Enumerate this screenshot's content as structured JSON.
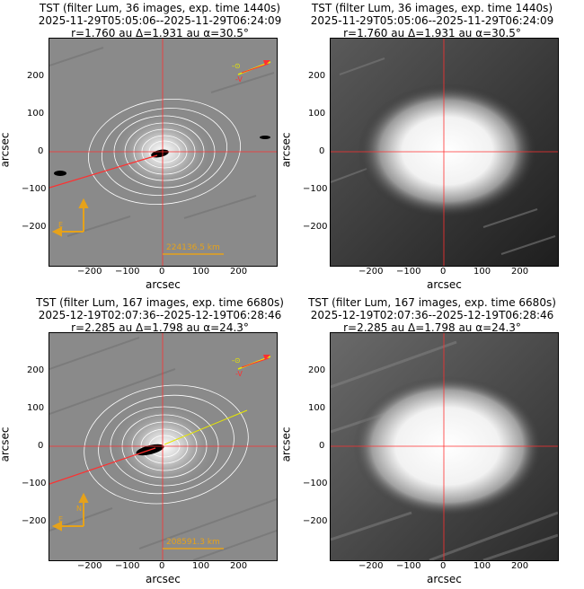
{
  "panels": [
    {
      "title_line1": "TST (filter Lum, 36 images, exp. time 1440s)",
      "title_line2": "2025-11-29T05:05:06--2025-11-29T06:24:09",
      "title_line3": "r=1.760 au Δ=1.931 au α=30.5°",
      "scalebar": "224136.5 km",
      "style": "processed"
    },
    {
      "title_line1": "TST (filter Lum, 36 images, exp. time 1440s)",
      "title_line2": "2025-11-29T05:05:06--2025-11-29T06:24:09",
      "title_line3": "r=1.760 au Δ=1.931 au α=30.5°",
      "style": "raw"
    },
    {
      "title_line1": "TST (filter Lum, 167 images, exp. time 6680s)",
      "title_line2": "2025-12-19T02:07:36--2025-12-19T06:28:46",
      "title_line3": "r=2.285 au Δ=1.798 au α=24.3°",
      "scalebar": "208591.3 km",
      "style": "processed"
    },
    {
      "title_line1": "TST (filter Lum, 167 images, exp. time 6680s)",
      "title_line2": "2025-12-19T02:07:36--2025-12-19T06:28:46",
      "title_line3": "r=2.285 au Δ=1.798 au α=24.3°",
      "style": "raw"
    }
  ],
  "axes": {
    "xlabel": "arcsec",
    "ylabel": "arcsec",
    "x_ticks": [
      "−200",
      "−100",
      "0",
      "100",
      "200"
    ],
    "y_ticks": [
      "200",
      "100",
      "0",
      "−100",
      "−200"
    ]
  },
  "compass": {
    "north": "N",
    "east": "E"
  },
  "vector_labels": {
    "sun": "-⊙",
    "velocity": "-V"
  },
  "colors": {
    "crosshair": "#ff3030",
    "orange": "#e6a21a",
    "contour": "#ffffff",
    "yellow": "#e8e800"
  }
}
